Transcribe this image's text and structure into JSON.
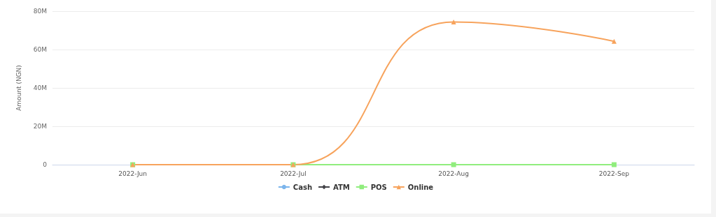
{
  "chart_data": {
    "type": "line",
    "ylabel": "Amount (NGN)",
    "categories": [
      "2022-Jun",
      "2022-Jul",
      "2022-Aug",
      "2022-Sep"
    ],
    "series": [
      {
        "name": "Cash",
        "color": "#7cb5ec",
        "marker": "circle",
        "values": [
          null,
          null,
          null,
          null
        ]
      },
      {
        "name": "ATM",
        "color": "#434348",
        "marker": "diamond",
        "values": [
          null,
          null,
          null,
          null
        ]
      },
      {
        "name": "POS",
        "color": "#90ed7d",
        "marker": "square",
        "values": [
          0,
          0,
          0,
          0
        ]
      },
      {
        "name": "Online",
        "color": "#f7a35c",
        "marker": "triangle",
        "values": [
          0,
          0,
          74400000,
          64300000
        ]
      }
    ],
    "ylim": [
      0,
      80000000
    ],
    "yticks": [
      0,
      {
        "value": 20000000,
        "label": "20M"
      },
      {
        "value": 40000000,
        "label": "40M"
      },
      {
        "value": 60000000,
        "label": "60M"
      },
      {
        "value": 80000000,
        "label": "80M"
      }
    ],
    "grid": "y",
    "legend": "bottom",
    "line_style": "solid"
  }
}
